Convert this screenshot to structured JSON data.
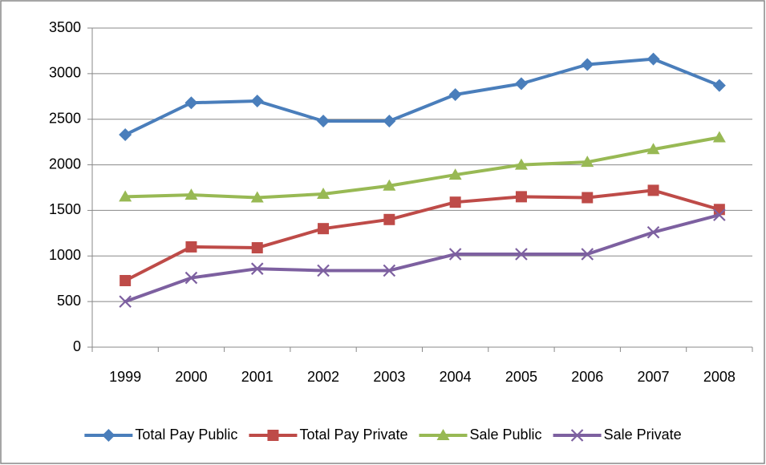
{
  "chart_data": {
    "type": "line",
    "categories": [
      "1999",
      "2000",
      "2001",
      "2002",
      "2003",
      "2004",
      "2005",
      "2006",
      "2007",
      "2008"
    ],
    "series": [
      {
        "name": "Total Pay Public",
        "color": "#4a7ebb",
        "marker": "diamond",
        "values": [
          2330,
          2680,
          2700,
          2480,
          2480,
          2770,
          2890,
          3100,
          3160,
          2870
        ]
      },
      {
        "name": "Total Pay Private",
        "color": "#be4b48",
        "marker": "square",
        "values": [
          730,
          1100,
          1090,
          1300,
          1400,
          1590,
          1650,
          1640,
          1720,
          1510
        ]
      },
      {
        "name": "Sale Public",
        "color": "#98b954",
        "marker": "triangle",
        "values": [
          1650,
          1670,
          1640,
          1680,
          1770,
          1890,
          2000,
          2030,
          2170,
          2300
        ]
      },
      {
        "name": "Sale Private",
        "color": "#7d60a0",
        "marker": "x",
        "values": [
          500,
          760,
          860,
          840,
          840,
          1020,
          1020,
          1020,
          1260,
          1450
        ]
      }
    ],
    "ylim": [
      0,
      3500
    ],
    "yticks": [
      0,
      500,
      1000,
      1500,
      2000,
      2500,
      3000,
      3500
    ],
    "grid": true,
    "legend": "bottom"
  }
}
